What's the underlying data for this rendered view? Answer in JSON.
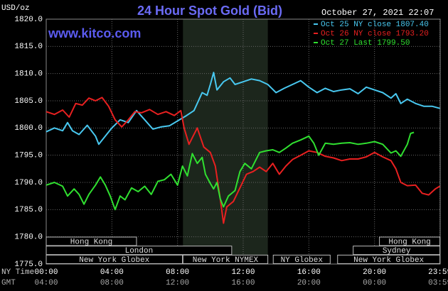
{
  "chart_data": {
    "type": "line",
    "title": "24 Hour Spot Gold (Bid)",
    "subtitle": "October 27, 2021 22:07",
    "watermark": "www.kitco.com",
    "y_label": "USD/oz",
    "x_label": "NY Time",
    "x2_label": "GMT",
    "xlim": [
      0,
      24
    ],
    "xticks": [
      {
        "value": 0,
        "label": "00:00"
      },
      {
        "value": 4,
        "label": "04:00"
      },
      {
        "value": 8,
        "label": "08:00"
      },
      {
        "value": 12,
        "label": "12:00"
      },
      {
        "value": 16,
        "label": "16:00"
      },
      {
        "value": 20,
        "label": "20:00"
      },
      {
        "value": 23.983,
        "label": "23:59"
      }
    ],
    "gmt_labels": [
      "04:00",
      "08:00",
      "12:00",
      "16:00",
      "20:00",
      "00:00",
      "03:59"
    ],
    "ylim": [
      1775,
      1820
    ],
    "yticks": [
      {
        "value": 1775,
        "label": "1775.0"
      },
      {
        "value": 1780,
        "label": "1780.0"
      },
      {
        "value": 1785,
        "label": "1785.0"
      },
      {
        "value": 1790,
        "label": "1790.0"
      },
      {
        "value": 1795,
        "label": "1795.0"
      },
      {
        "value": 1800,
        "label": "1800.0"
      },
      {
        "value": 1805,
        "label": "1805.0"
      },
      {
        "value": 1810,
        "label": "1810.0"
      },
      {
        "value": 1815,
        "label": "1815.0"
      },
      {
        "value": 1820,
        "label": "1820.0"
      }
    ],
    "grid": true,
    "sessions": [
      {
        "label": "Hong Kong",
        "start": 0,
        "end": 5.5
      },
      {
        "label": "London",
        "start": 0,
        "end": 11.3
      },
      {
        "label": "New York Globex",
        "start": 0,
        "end": 8.3
      },
      {
        "label": "New York NYMEX",
        "start": 8.33,
        "end": 13.5
      },
      {
        "label": "NY Globex",
        "start": 13.83,
        "end": 17.3
      },
      {
        "label": "Hong Kong",
        "start": 20.3,
        "end": 23.983
      },
      {
        "label": "Sydney",
        "start": 18.7,
        "end": 23.983
      },
      {
        "label": "New York Globex",
        "start": 17.75,
        "end": 23.983
      }
    ],
    "series": [
      {
        "name": "Oct 25 NY close 1807.40",
        "color": "#48c8f0",
        "x": [
          0,
          0.5,
          1,
          1.3,
          1.6,
          2,
          2.5,
          3,
          3.2,
          3.6,
          4,
          4.5,
          5,
          5.5,
          6,
          6.5,
          7,
          7.5,
          8,
          8.5,
          9,
          9.5,
          9.8,
          10,
          10.2,
          10.4,
          10.8,
          11.2,
          11.5,
          12,
          12.5,
          13,
          13.5,
          14,
          14.5,
          15,
          15.5,
          16,
          16.5,
          17,
          17.5,
          18,
          18.5,
          19,
          19.5,
          20,
          20.5,
          21,
          21.3,
          21.6,
          22,
          22.5,
          23,
          23.5,
          23.98
        ],
        "values": [
          1799.3,
          1800,
          1799.5,
          1801,
          1799.5,
          1798.8,
          1800.5,
          1798.5,
          1797,
          1798.5,
          1800,
          1801.5,
          1801,
          1803.2,
          1801.5,
          1799.8,
          1800.2,
          1800.4,
          1801.3,
          1802.2,
          1803.2,
          1806.5,
          1806,
          1808,
          1810.2,
          1807,
          1808.5,
          1809.2,
          1808,
          1808.5,
          1809,
          1808.7,
          1808,
          1806.5,
          1807.3,
          1808,
          1808.7,
          1807.5,
          1806.5,
          1807.3,
          1806.7,
          1807,
          1807.2,
          1806.3,
          1807.5,
          1807,
          1806.5,
          1805.5,
          1806.3,
          1804.5,
          1805.3,
          1804.5,
          1804,
          1804,
          1803.6
        ]
      },
      {
        "name": "Oct 26 NY close 1793.20",
        "color": "#e82020",
        "x": [
          0,
          0.5,
          1,
          1.4,
          1.8,
          2.2,
          2.6,
          3,
          3.4,
          3.8,
          4.2,
          4.6,
          5,
          5.4,
          5.8,
          6.3,
          6.8,
          7.3,
          7.8,
          8.2,
          8.4,
          8.7,
          8.9,
          9.2,
          9.6,
          10,
          10.3,
          10.6,
          10.8,
          11,
          11.4,
          11.8,
          12.2,
          12.6,
          13,
          13.4,
          13.8,
          14.2,
          14.6,
          15,
          15.5,
          16,
          16.5,
          17,
          17.5,
          18,
          18.5,
          19,
          19.5,
          20,
          20.5,
          21,
          21.3,
          21.6,
          22,
          22.5,
          22.9,
          23.3,
          23.7,
          23.98
        ],
        "values": [
          1803,
          1802.5,
          1803.3,
          1802,
          1804.5,
          1804.2,
          1805.5,
          1805,
          1805.6,
          1804,
          1801.5,
          1800.2,
          1801.5,
          1803,
          1802.8,
          1803.4,
          1802.5,
          1803,
          1802.3,
          1803.2,
          1800,
          1797,
          1798.2,
          1800,
          1796.5,
          1795.5,
          1793,
          1787,
          1782.5,
          1785.5,
          1786.5,
          1789,
          1791.5,
          1792,
          1792.8,
          1792,
          1793.5,
          1791.5,
          1793,
          1794.2,
          1795,
          1795.8,
          1795.5,
          1794.8,
          1794.5,
          1794,
          1794.3,
          1794.3,
          1794.7,
          1795.5,
          1794.7,
          1794,
          1792.5,
          1790,
          1789.4,
          1789.5,
          1788,
          1787.7,
          1788.8,
          1789.3
        ]
      },
      {
        "name": "Oct 27 Last 1799.50",
        "color": "#30e030",
        "x": [
          0,
          0.5,
          1,
          1.3,
          1.7,
          2,
          2.3,
          2.6,
          3,
          3.3,
          3.6,
          3.9,
          4.2,
          4.5,
          4.8,
          5.2,
          5.6,
          6,
          6.4,
          6.8,
          7.2,
          7.6,
          8,
          8.3,
          8.6,
          8.9,
          9.2,
          9.5,
          9.7,
          10,
          10.2,
          10.4,
          10.6,
          10.8,
          11.1,
          11.5,
          11.8,
          12.1,
          12.5,
          13,
          13.4,
          13.8,
          14.2,
          14.6,
          15,
          15.5,
          16,
          16.3,
          16.6,
          17,
          17.5,
          18,
          18.5,
          19,
          19.5,
          20,
          20.5,
          21,
          21.3,
          21.6,
          22,
          22.2,
          22.4
        ],
        "values": [
          1789.5,
          1790,
          1789.3,
          1787.5,
          1788.8,
          1787.8,
          1786,
          1787.8,
          1789.5,
          1791,
          1789.5,
          1787.5,
          1785,
          1787.5,
          1786.8,
          1789,
          1788.3,
          1789.3,
          1787.8,
          1790.2,
          1790.5,
          1791.5,
          1789.5,
          1793,
          1791.2,
          1795.3,
          1793.5,
          1794.6,
          1791.5,
          1789.8,
          1788.8,
          1790,
          1787,
          1785.5,
          1787.5,
          1788.5,
          1792,
          1793.5,
          1792.5,
          1795.5,
          1795.8,
          1796,
          1795.5,
          1796.3,
          1797.2,
          1797.8,
          1798.5,
          1797.2,
          1795,
          1797.2,
          1797,
          1797.2,
          1797.3,
          1797,
          1797.2,
          1797.5,
          1797,
          1795.4,
          1795.8,
          1794.8,
          1797,
          1799,
          1799.2
        ]
      }
    ]
  }
}
